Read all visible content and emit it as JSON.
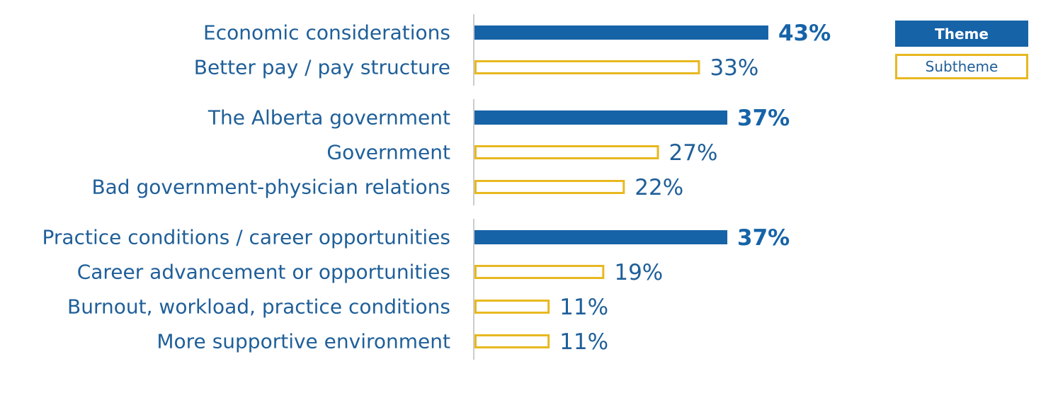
{
  "chart_data": {
    "type": "bar",
    "orientation": "horizontal",
    "title": "",
    "xlabel": "",
    "ylabel": "",
    "xlim": [
      0,
      100
    ],
    "grid": false,
    "legend_position": "top-right",
    "legend": [
      {
        "name": "Theme",
        "style": "filled",
        "color": "#1663a8"
      },
      {
        "name": "Subtheme",
        "style": "outline",
        "color": "#e8b820"
      }
    ],
    "groups": [
      {
        "theme": {
          "label": "Economic considerations",
          "value": 43,
          "value_label": "43%"
        },
        "subthemes": [
          {
            "label": "Better pay / pay structure",
            "value": 33,
            "value_label": "33%"
          }
        ]
      },
      {
        "theme": {
          "label": "The Alberta government",
          "value": 37,
          "value_label": "37%"
        },
        "subthemes": [
          {
            "label": "Government",
            "value": 27,
            "value_label": "27%"
          },
          {
            "label": "Bad government-physician relations",
            "value": 22,
            "value_label": "22%"
          }
        ]
      },
      {
        "theme": {
          "label": "Practice conditions / career opportunities",
          "value": 37,
          "value_label": "37%"
        },
        "subthemes": [
          {
            "label": "Career advancement or opportunities",
            "value": 19,
            "value_label": "19%"
          },
          {
            "label": "Burnout, workload, practice conditions",
            "value": 11,
            "value_label": "11%"
          },
          {
            "label": "More supportive environment",
            "value": 11,
            "value_label": "11%"
          }
        ]
      }
    ]
  },
  "colors": {
    "theme": "#1663a8",
    "subtheme_border": "#e8b820",
    "text": "#1f5f99",
    "axis": "#cccccc"
  }
}
